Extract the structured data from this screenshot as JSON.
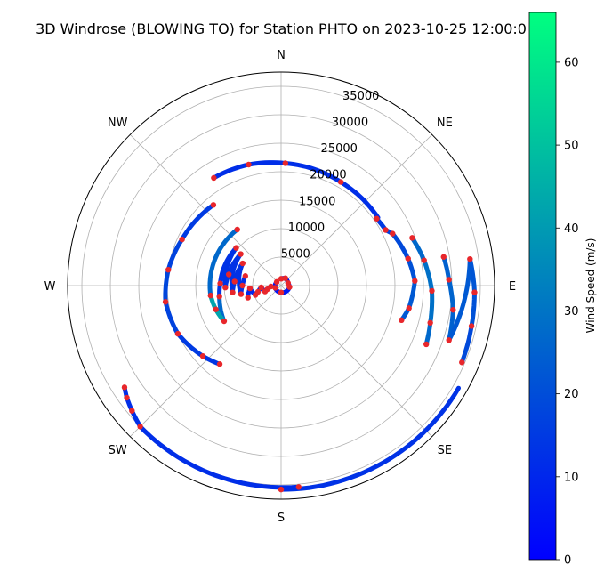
{
  "chart_data": {
    "type": "scatter",
    "projection": "polar",
    "title": "3D Windrose (BLOWING TO) for Station PHTO on 2023-10-25 12:00:0",
    "direction_labels": [
      "N",
      "NE",
      "E",
      "SE",
      "S",
      "SW",
      "W",
      "NW"
    ],
    "theta_zero": "north",
    "theta_direction": "clockwise",
    "r_ticks": [
      5000,
      10000,
      15000,
      20000,
      25000,
      30000,
      35000
    ],
    "r_lim": [
      0,
      37500
    ],
    "grid": true,
    "colorbar": {
      "label": "Wind Speed (m/s)",
      "range": [
        0,
        66
      ],
      "ticks": [
        0,
        10,
        20,
        30,
        40,
        50,
        60
      ],
      "colors": [
        "#0000ff",
        "#00ff80"
      ]
    },
    "marker_color": "#e8262b",
    "series": [
      {
        "type": "track",
        "points": [
          {
            "dir": 1,
            "alt": 1200,
            "speed": 6,
            "marker": true
          },
          {
            "dir": 30,
            "alt": 1500,
            "speed": 6,
            "marker": true
          },
          {
            "dir": 70,
            "alt": 1300,
            "speed": 6,
            "marker": true
          },
          {
            "dir": 100,
            "alt": 1500,
            "speed": 6,
            "marker": true
          },
          {
            "dir": 180,
            "alt": 1200,
            "speed": 6,
            "marker": true
          },
          {
            "dir": 250,
            "alt": 1100,
            "speed": 6,
            "marker": true
          },
          {
            "dir": 310,
            "alt": 1000,
            "speed": 6,
            "marker": true
          }
        ]
      },
      {
        "type": "track",
        "points": [
          {
            "dir": 265,
            "alt": 1800,
            "speed": 10,
            "marker": true
          },
          {
            "dir": 255,
            "alt": 2500,
            "speed": 10,
            "marker": true
          },
          {
            "dir": 250,
            "alt": 3000,
            "speed": 10,
            "marker": true
          },
          {
            "dir": 265,
            "alt": 3500,
            "speed": 10,
            "marker": true
          },
          {
            "dir": 255,
            "alt": 4200,
            "speed": 10,
            "marker": true
          },
          {
            "dir": 250,
            "alt": 4800,
            "speed": 10,
            "marker": true
          },
          {
            "dir": 265,
            "alt": 5500,
            "speed": 10,
            "marker": true
          },
          {
            "dir": 250,
            "alt": 6200,
            "speed": 10,
            "marker": true
          }
        ]
      },
      {
        "type": "track",
        "points": [
          {
            "dir": 285,
            "alt": 6500,
            "speed": 12,
            "marker": true
          },
          {
            "dir": 270,
            "alt": 6800,
            "speed": 12,
            "marker": true
          },
          {
            "dir": 258,
            "alt": 7200,
            "speed": 14,
            "marker": true
          },
          {
            "dir": 300,
            "alt": 7800,
            "speed": 12,
            "marker": true
          },
          {
            "dir": 275,
            "alt": 8200,
            "speed": 14,
            "marker": true
          },
          {
            "dir": 262,
            "alt": 8600,
            "speed": 14,
            "marker": true
          },
          {
            "dir": 308,
            "alt": 9000,
            "speed": 12,
            "marker": true
          },
          {
            "dir": 282,
            "alt": 9400,
            "speed": 14,
            "marker": true
          },
          {
            "dir": 268,
            "alt": 9800,
            "speed": 14,
            "marker": true
          },
          {
            "dir": 310,
            "alt": 10300,
            "speed": 12,
            "marker": true
          },
          {
            "dir": 272,
            "alt": 10700,
            "speed": 14,
            "marker": true
          },
          {
            "dir": 260,
            "alt": 11000,
            "speed": 14,
            "marker": true
          },
          {
            "dir": 238,
            "alt": 11800,
            "speed": 40,
            "marker": true
          },
          {
            "dir": 250,
            "alt": 12200,
            "speed": 45,
            "marker": true
          },
          {
            "dir": 262,
            "alt": 12500,
            "speed": 40,
            "marker": true
          },
          {
            "dir": 322,
            "alt": 12500,
            "speed": 14,
            "marker": true
          }
        ]
      },
      {
        "type": "track",
        "points": [
          {
            "dir": 320,
            "alt": 18500,
            "speed": 14,
            "marker": true
          },
          {
            "dir": 295,
            "alt": 19200,
            "speed": 16,
            "marker": true
          },
          {
            "dir": 278,
            "alt": 20000,
            "speed": 18,
            "marker": true
          },
          {
            "dir": 262,
            "alt": 20500,
            "speed": 18,
            "marker": true
          },
          {
            "dir": 245,
            "alt": 20000,
            "speed": 16,
            "marker": true
          },
          {
            "dir": 228,
            "alt": 18500,
            "speed": 14,
            "marker": true
          },
          {
            "dir": 218,
            "alt": 17500,
            "speed": 14,
            "marker": true
          }
        ]
      },
      {
        "type": "track",
        "points": [
          {
            "dir": 328,
            "alt": 22300,
            "speed": 12,
            "marker": true
          },
          {
            "dir": 345,
            "alt": 22000,
            "speed": 12,
            "marker": true
          },
          {
            "dir": 2,
            "alt": 21500,
            "speed": 12,
            "marker": true
          },
          {
            "dir": 30,
            "alt": 21000,
            "speed": 12,
            "marker": true
          },
          {
            "dir": 55,
            "alt": 20800,
            "speed": 12,
            "marker": false
          }
        ]
      },
      {
        "type": "track",
        "points": [
          {
            "dir": 55,
            "alt": 20500,
            "speed": 14,
            "marker": true
          },
          {
            "dir": 62,
            "alt": 20800,
            "speed": 16,
            "marker": true
          },
          {
            "dir": 65,
            "alt": 21600,
            "speed": 18,
            "marker": true
          },
          {
            "dir": 78,
            "alt": 22800,
            "speed": 20,
            "marker": true
          },
          {
            "dir": 88,
            "alt": 23500,
            "speed": 22,
            "marker": true
          },
          {
            "dir": 100,
            "alt": 22800,
            "speed": 24,
            "marker": true
          },
          {
            "dir": 106,
            "alt": 22000,
            "speed": 22,
            "marker": true
          }
        ]
      },
      {
        "type": "track",
        "points": [
          {
            "dir": 70,
            "alt": 24500,
            "speed": 26,
            "marker": true
          },
          {
            "dir": 80,
            "alt": 25500,
            "speed": 28,
            "marker": true
          },
          {
            "dir": 92,
            "alt": 26500,
            "speed": 30,
            "marker": true
          },
          {
            "dir": 104,
            "alt": 27000,
            "speed": 28,
            "marker": true
          },
          {
            "dir": 112,
            "alt": 27500,
            "speed": 26,
            "marker": true
          }
        ]
      },
      {
        "type": "track",
        "points": [
          {
            "dir": 80,
            "alt": 29000,
            "speed": 24,
            "marker": true
          },
          {
            "dir": 88,
            "alt": 29500,
            "speed": 26,
            "marker": true
          },
          {
            "dir": 98,
            "alt": 30500,
            "speed": 26,
            "marker": true
          },
          {
            "dir": 108,
            "alt": 31000,
            "speed": 24,
            "marker": true
          },
          {
            "dir": 82,
            "alt": 33500,
            "speed": 22,
            "marker": true
          },
          {
            "dir": 92,
            "alt": 34000,
            "speed": 22,
            "marker": true
          },
          {
            "dir": 102,
            "alt": 34200,
            "speed": 20,
            "marker": true
          },
          {
            "dir": 113,
            "alt": 34500,
            "speed": 18,
            "marker": true
          }
        ]
      },
      {
        "type": "track",
        "points": [
          {
            "dir": 120,
            "alt": 36000,
            "speed": 14,
            "marker": false
          },
          {
            "dir": 180,
            "alt": 35800,
            "speed": 12,
            "marker": true
          },
          {
            "dir": 175,
            "alt": 35500,
            "speed": 12,
            "marker": true
          },
          {
            "dir": 225,
            "alt": 35000,
            "speed": 12,
            "marker": true
          },
          {
            "dir": 230,
            "alt": 34200,
            "speed": 12,
            "marker": true
          },
          {
            "dir": 234,
            "alt": 33500,
            "speed": 12,
            "marker": true
          },
          {
            "dir": 237,
            "alt": 32800,
            "speed": 12,
            "marker": true
          }
        ]
      }
    ]
  }
}
